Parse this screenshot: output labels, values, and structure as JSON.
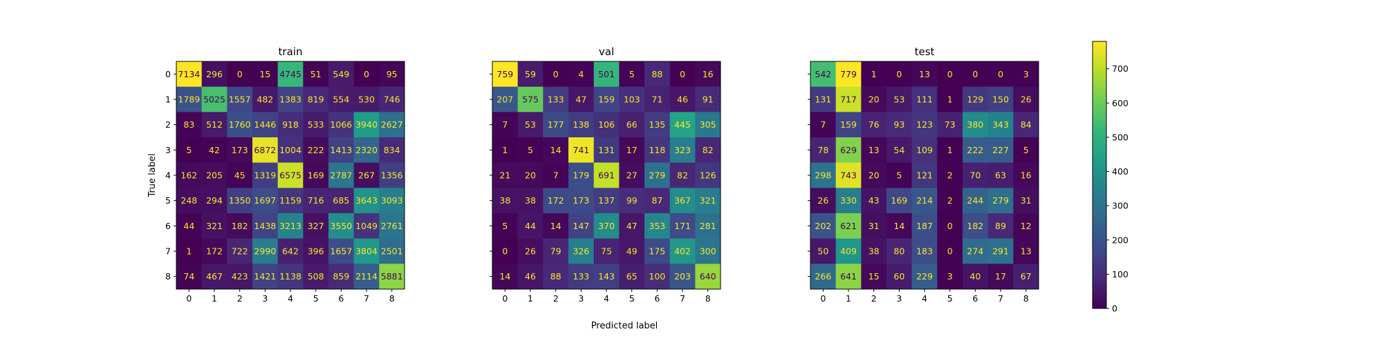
{
  "figure": {
    "xlabel": "Predicted label",
    "ylabel": "True label"
  },
  "colormap": {
    "name": "viridis",
    "stops": [
      "#440154",
      "#482878",
      "#3e4989",
      "#31688e",
      "#26828e",
      "#1f9e89",
      "#35b779",
      "#6ece58",
      "#b5de2b",
      "#fde725"
    ],
    "text_light": "#fde725",
    "text_dark": "#440154"
  },
  "colorbar": {
    "vmin": 0,
    "vmax": 780,
    "ticks": [
      0,
      100,
      200,
      300,
      400,
      500,
      600,
      700
    ]
  },
  "chart_data": [
    {
      "type": "heatmap",
      "title": "train",
      "xlabel": "",
      "ylabel": "True label",
      "x_ticks": [
        "0",
        "1",
        "2",
        "3",
        "4",
        "5",
        "6",
        "7",
        "8"
      ],
      "y_ticks": [
        "0",
        "1",
        "2",
        "3",
        "4",
        "5",
        "6",
        "7",
        "8"
      ],
      "matrix": [
        [
          7134,
          296,
          0,
          15,
          4745,
          51,
          549,
          0,
          95
        ],
        [
          1789,
          5025,
          1557,
          482,
          1383,
          819,
          554,
          530,
          746
        ],
        [
          83,
          512,
          1760,
          1446,
          918,
          533,
          1066,
          3940,
          2627
        ],
        [
          5,
          42,
          173,
          6872,
          1004,
          222,
          1413,
          2320,
          834
        ],
        [
          162,
          205,
          45,
          1319,
          6575,
          169,
          2787,
          267,
          1356
        ],
        [
          248,
          294,
          1350,
          1697,
          1159,
          716,
          685,
          3643,
          3093
        ],
        [
          44,
          321,
          182,
          1438,
          3213,
          327,
          3550,
          1049,
          2761
        ],
        [
          1,
          172,
          722,
          2990,
          642,
          396,
          1657,
          3804,
          2501
        ],
        [
          74,
          467,
          423,
          1421,
          1138,
          508,
          859,
          2114,
          5881
        ]
      ]
    },
    {
      "type": "heatmap",
      "title": "val",
      "xlabel": "Predicted label",
      "ylabel": "",
      "x_ticks": [
        "0",
        "1",
        "2",
        "3",
        "4",
        "5",
        "6",
        "7",
        "8"
      ],
      "y_ticks": [],
      "matrix": [
        [
          759,
          59,
          0,
          4,
          501,
          5,
          88,
          0,
          16
        ],
        [
          207,
          575,
          133,
          47,
          159,
          103,
          71,
          46,
          91
        ],
        [
          7,
          53,
          177,
          138,
          106,
          66,
          135,
          445,
          305
        ],
        [
          1,
          5,
          14,
          741,
          131,
          17,
          118,
          323,
          82
        ],
        [
          21,
          20,
          7,
          179,
          691,
          27,
          279,
          82,
          126
        ],
        [
          38,
          38,
          172,
          173,
          137,
          99,
          87,
          367,
          321
        ],
        [
          5,
          44,
          14,
          147,
          370,
          47,
          353,
          171,
          281
        ],
        [
          0,
          26,
          79,
          326,
          75,
          49,
          175,
          402,
          300
        ],
        [
          14,
          46,
          88,
          133,
          143,
          65,
          100,
          203,
          640
        ]
      ]
    },
    {
      "type": "heatmap",
      "title": "test",
      "xlabel": "",
      "ylabel": "",
      "x_ticks": [
        "0",
        "1",
        "2",
        "3",
        "4",
        "5",
        "6",
        "7",
        "8"
      ],
      "y_ticks": [],
      "matrix": [
        [
          542,
          779,
          1,
          0,
          13,
          0,
          0,
          0,
          3
        ],
        [
          131,
          717,
          20,
          53,
          111,
          1,
          129,
          150,
          26
        ],
        [
          7,
          159,
          76,
          93,
          123,
          73,
          380,
          343,
          84
        ],
        [
          78,
          629,
          13,
          54,
          109,
          1,
          222,
          227,
          5
        ],
        [
          298,
          743,
          20,
          5,
          121,
          2,
          70,
          63,
          16
        ],
        [
          26,
          330,
          43,
          169,
          214,
          2,
          244,
          279,
          31
        ],
        [
          202,
          621,
          31,
          14,
          187,
          0,
          182,
          89,
          12
        ],
        [
          50,
          409,
          38,
          80,
          183,
          0,
          274,
          291,
          13
        ],
        [
          266,
          641,
          15,
          60,
          229,
          3,
          40,
          17,
          67
        ]
      ]
    }
  ]
}
